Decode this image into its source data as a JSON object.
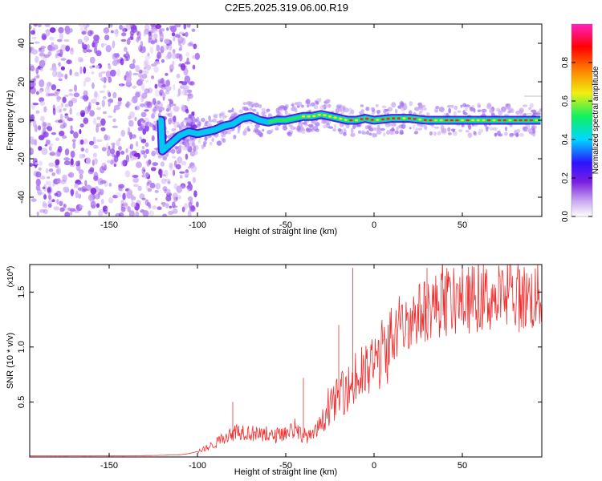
{
  "title": "C2E5.2025.319.06.00.R19",
  "chart_data": [
    {
      "type": "heatmap",
      "xlabel": "Height of straight line (km)",
      "ylabel": "Frequency (Hz)",
      "xlim": [
        -195,
        95
      ],
      "ylim": [
        -50,
        50
      ],
      "xticks": [
        -150,
        -100,
        -50,
        0,
        50
      ],
      "yticks": [
        -40,
        -20,
        0,
        20,
        40
      ],
      "grid": false,
      "colorbar": {
        "label": "Normalized spectral amplitude",
        "range": [
          0,
          1
        ],
        "ticks": [
          "0.0",
          "0.2",
          "0.4",
          "0.6",
          "0.8"
        ],
        "colors": [
          "#ffffff",
          "#c9a8f0",
          "#7a1ee0",
          "#2a14ff",
          "#00d8ff",
          "#10f060",
          "#f0f010",
          "#ff8000",
          "#ff0000",
          "#ff20c0"
        ]
      },
      "noise_region_km": [
        -195,
        -100
      ],
      "ridge": [
        {
          "x": -120,
          "f": -16
        },
        {
          "x": -115,
          "f": -12
        },
        {
          "x": -110,
          "f": -8
        },
        {
          "x": -105,
          "f": -6
        },
        {
          "x": -100,
          "f": -7
        },
        {
          "x": -95,
          "f": -6
        },
        {
          "x": -90,
          "f": -5
        },
        {
          "x": -85,
          "f": -3
        },
        {
          "x": -80,
          "f": -2
        },
        {
          "x": -75,
          "f": 1
        },
        {
          "x": -70,
          "f": 2
        },
        {
          "x": -65,
          "f": 0
        },
        {
          "x": -60,
          "f": -1
        },
        {
          "x": -55,
          "f": 0
        },
        {
          "x": -50,
          "f": 0
        },
        {
          "x": -45,
          "f": 1
        },
        {
          "x": -40,
          "f": 2
        },
        {
          "x": -35,
          "f": 2
        },
        {
          "x": -30,
          "f": 3
        },
        {
          "x": -25,
          "f": 2
        },
        {
          "x": -20,
          "f": 1
        },
        {
          "x": -15,
          "f": 0
        },
        {
          "x": -10,
          "f": 0
        },
        {
          "x": -5,
          "f": 1
        },
        {
          "x": 0,
          "f": 0
        },
        {
          "x": 10,
          "f": 1
        },
        {
          "x": 20,
          "f": 1
        },
        {
          "x": 30,
          "f": 0
        },
        {
          "x": 40,
          "f": 0
        },
        {
          "x": 50,
          "f": 0
        },
        {
          "x": 60,
          "f": 0
        },
        {
          "x": 70,
          "f": 0
        },
        {
          "x": 80,
          "f": 0
        },
        {
          "x": 95,
          "f": 0
        }
      ]
    },
    {
      "type": "line",
      "xlabel": "Height of straight line (km)",
      "ylabel": "SNR (10 * v/v)",
      "scale_label": "(x10",
      "scale_exponent": "4",
      "scale_close": ")",
      "xlim": [
        -195,
        95
      ],
      "ylim": [
        0,
        1.75
      ],
      "xticks": [
        -150,
        -100,
        -50,
        0,
        50
      ],
      "yticks": [
        "0.5",
        "1.0",
        "1.5"
      ],
      "line_color": "#f03030",
      "series": [
        {
          "name": "SNR",
          "points": [
            [
              -195,
              0.01
            ],
            [
              -180,
              0.01
            ],
            [
              -160,
              0.01
            ],
            [
              -140,
              0.01
            ],
            [
              -120,
              0.015
            ],
            [
              -110,
              0.02
            ],
            [
              -105,
              0.03
            ],
            [
              -100,
              0.05
            ],
            [
              -95,
              0.08
            ],
            [
              -90,
              0.12
            ],
            [
              -85,
              0.18
            ],
            [
              -80,
              0.22
            ],
            [
              -75,
              0.24
            ],
            [
              -70,
              0.22
            ],
            [
              -65,
              0.2
            ],
            [
              -60,
              0.18
            ],
            [
              -55,
              0.2
            ],
            [
              -50,
              0.22
            ],
            [
              -45,
              0.25
            ],
            [
              -40,
              0.2
            ],
            [
              -35,
              0.18
            ],
            [
              -30,
              0.3
            ],
            [
              -25,
              0.45
            ],
            [
              -20,
              0.55
            ],
            [
              -15,
              0.62
            ],
            [
              -10,
              0.68
            ],
            [
              -5,
              0.75
            ],
            [
              0,
              0.85
            ],
            [
              5,
              0.95
            ],
            [
              10,
              1.05
            ],
            [
              15,
              1.15
            ],
            [
              20,
              1.25
            ],
            [
              25,
              1.3
            ],
            [
              30,
              1.35
            ],
            [
              35,
              1.38
            ],
            [
              40,
              1.4
            ],
            [
              50,
              1.42
            ],
            [
              60,
              1.45
            ],
            [
              70,
              1.44
            ],
            [
              80,
              1.45
            ],
            [
              90,
              1.45
            ],
            [
              95,
              1.46
            ]
          ]
        }
      ],
      "annotations": [
        {
          "x": -80,
          "y": 0.5
        },
        {
          "x": -40,
          "y": 0.72
        },
        {
          "x": -20,
          "y": 1.2
        },
        {
          "x": -12,
          "y": 1.72
        },
        {
          "x": 30,
          "y": 1.72
        }
      ]
    }
  ]
}
